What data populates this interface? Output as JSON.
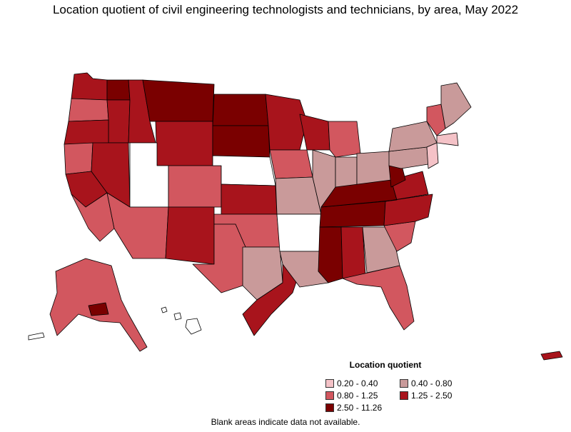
{
  "title": "Location quotient of civil engineering technologists and technicians, by area, May 2022",
  "legend": {
    "title": "Location quotient",
    "items": [
      {
        "label": "0.20 - 0.40",
        "color": "#f4c2c7"
      },
      {
        "label": "0.40 - 0.80",
        "color": "#c99a9a"
      },
      {
        "label": "0.80 - 1.25",
        "color": "#d2575f"
      },
      {
        "label": "1.25 - 2.50",
        "color": "#a8141c"
      },
      {
        "label": "2.50 - 11.26",
        "color": "#7a0000"
      }
    ]
  },
  "note": "Blank areas indicate data not available.",
  "colors": {
    "none": "#ffffff",
    "c1": "#f4c2c7",
    "c2": "#c99a9a",
    "c3": "#d2575f",
    "c4": "#a8141c",
    "c5": "#7a0000",
    "border": "#000000"
  }
}
